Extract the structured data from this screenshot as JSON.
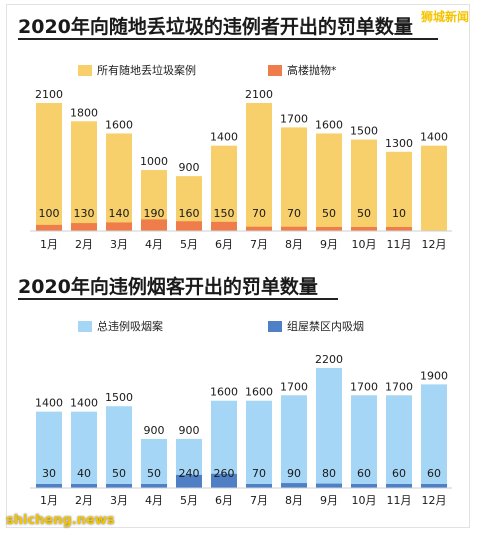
{
  "watermark_top": "狮城新闻",
  "watermark_bottom": "shicheng.news",
  "chart_data": [
    {
      "type": "bar",
      "title": "2020年向随地丢垃圾的违例者开出的罚单数量",
      "categories": [
        "1月",
        "2月",
        "3月",
        "4月",
        "5月",
        "6月",
        "7月",
        "8月",
        "9月",
        "10月",
        "11月",
        "12月"
      ],
      "series": [
        {
          "name": "所有随地丢垃圾案例",
          "values": [
            2100,
            1800,
            1600,
            1000,
            900,
            1400,
            2100,
            1700,
            1600,
            1500,
            1300,
            1400
          ],
          "color": "#f7cf6b"
        },
        {
          "name": "高楼抛物*",
          "values": [
            100,
            130,
            140,
            190,
            160,
            150,
            70,
            70,
            50,
            50,
            10,
            null
          ],
          "color": "#ef7d4c"
        }
      ],
      "ylim": [
        0,
        2300
      ]
    },
    {
      "type": "bar",
      "title": "2020年向违例烟客开出的罚单数量",
      "categories": [
        "1月",
        "2月",
        "3月",
        "4月",
        "5月",
        "6月",
        "7月",
        "8月",
        "9月",
        "10月",
        "11月",
        "12月"
      ],
      "series": [
        {
          "name": "总违例吸烟案",
          "values": [
            1400,
            1400,
            1500,
            900,
            900,
            1600,
            1600,
            1700,
            2200,
            1700,
            1700,
            1900
          ],
          "color": "#a6d6f5"
        },
        {
          "name": "组屋禁区内吸烟",
          "values": [
            30,
            40,
            50,
            50,
            240,
            260,
            70,
            90,
            80,
            60,
            60,
            60
          ],
          "color": "#4f7fc4"
        }
      ],
      "ylim": [
        0,
        2300
      ]
    }
  ]
}
